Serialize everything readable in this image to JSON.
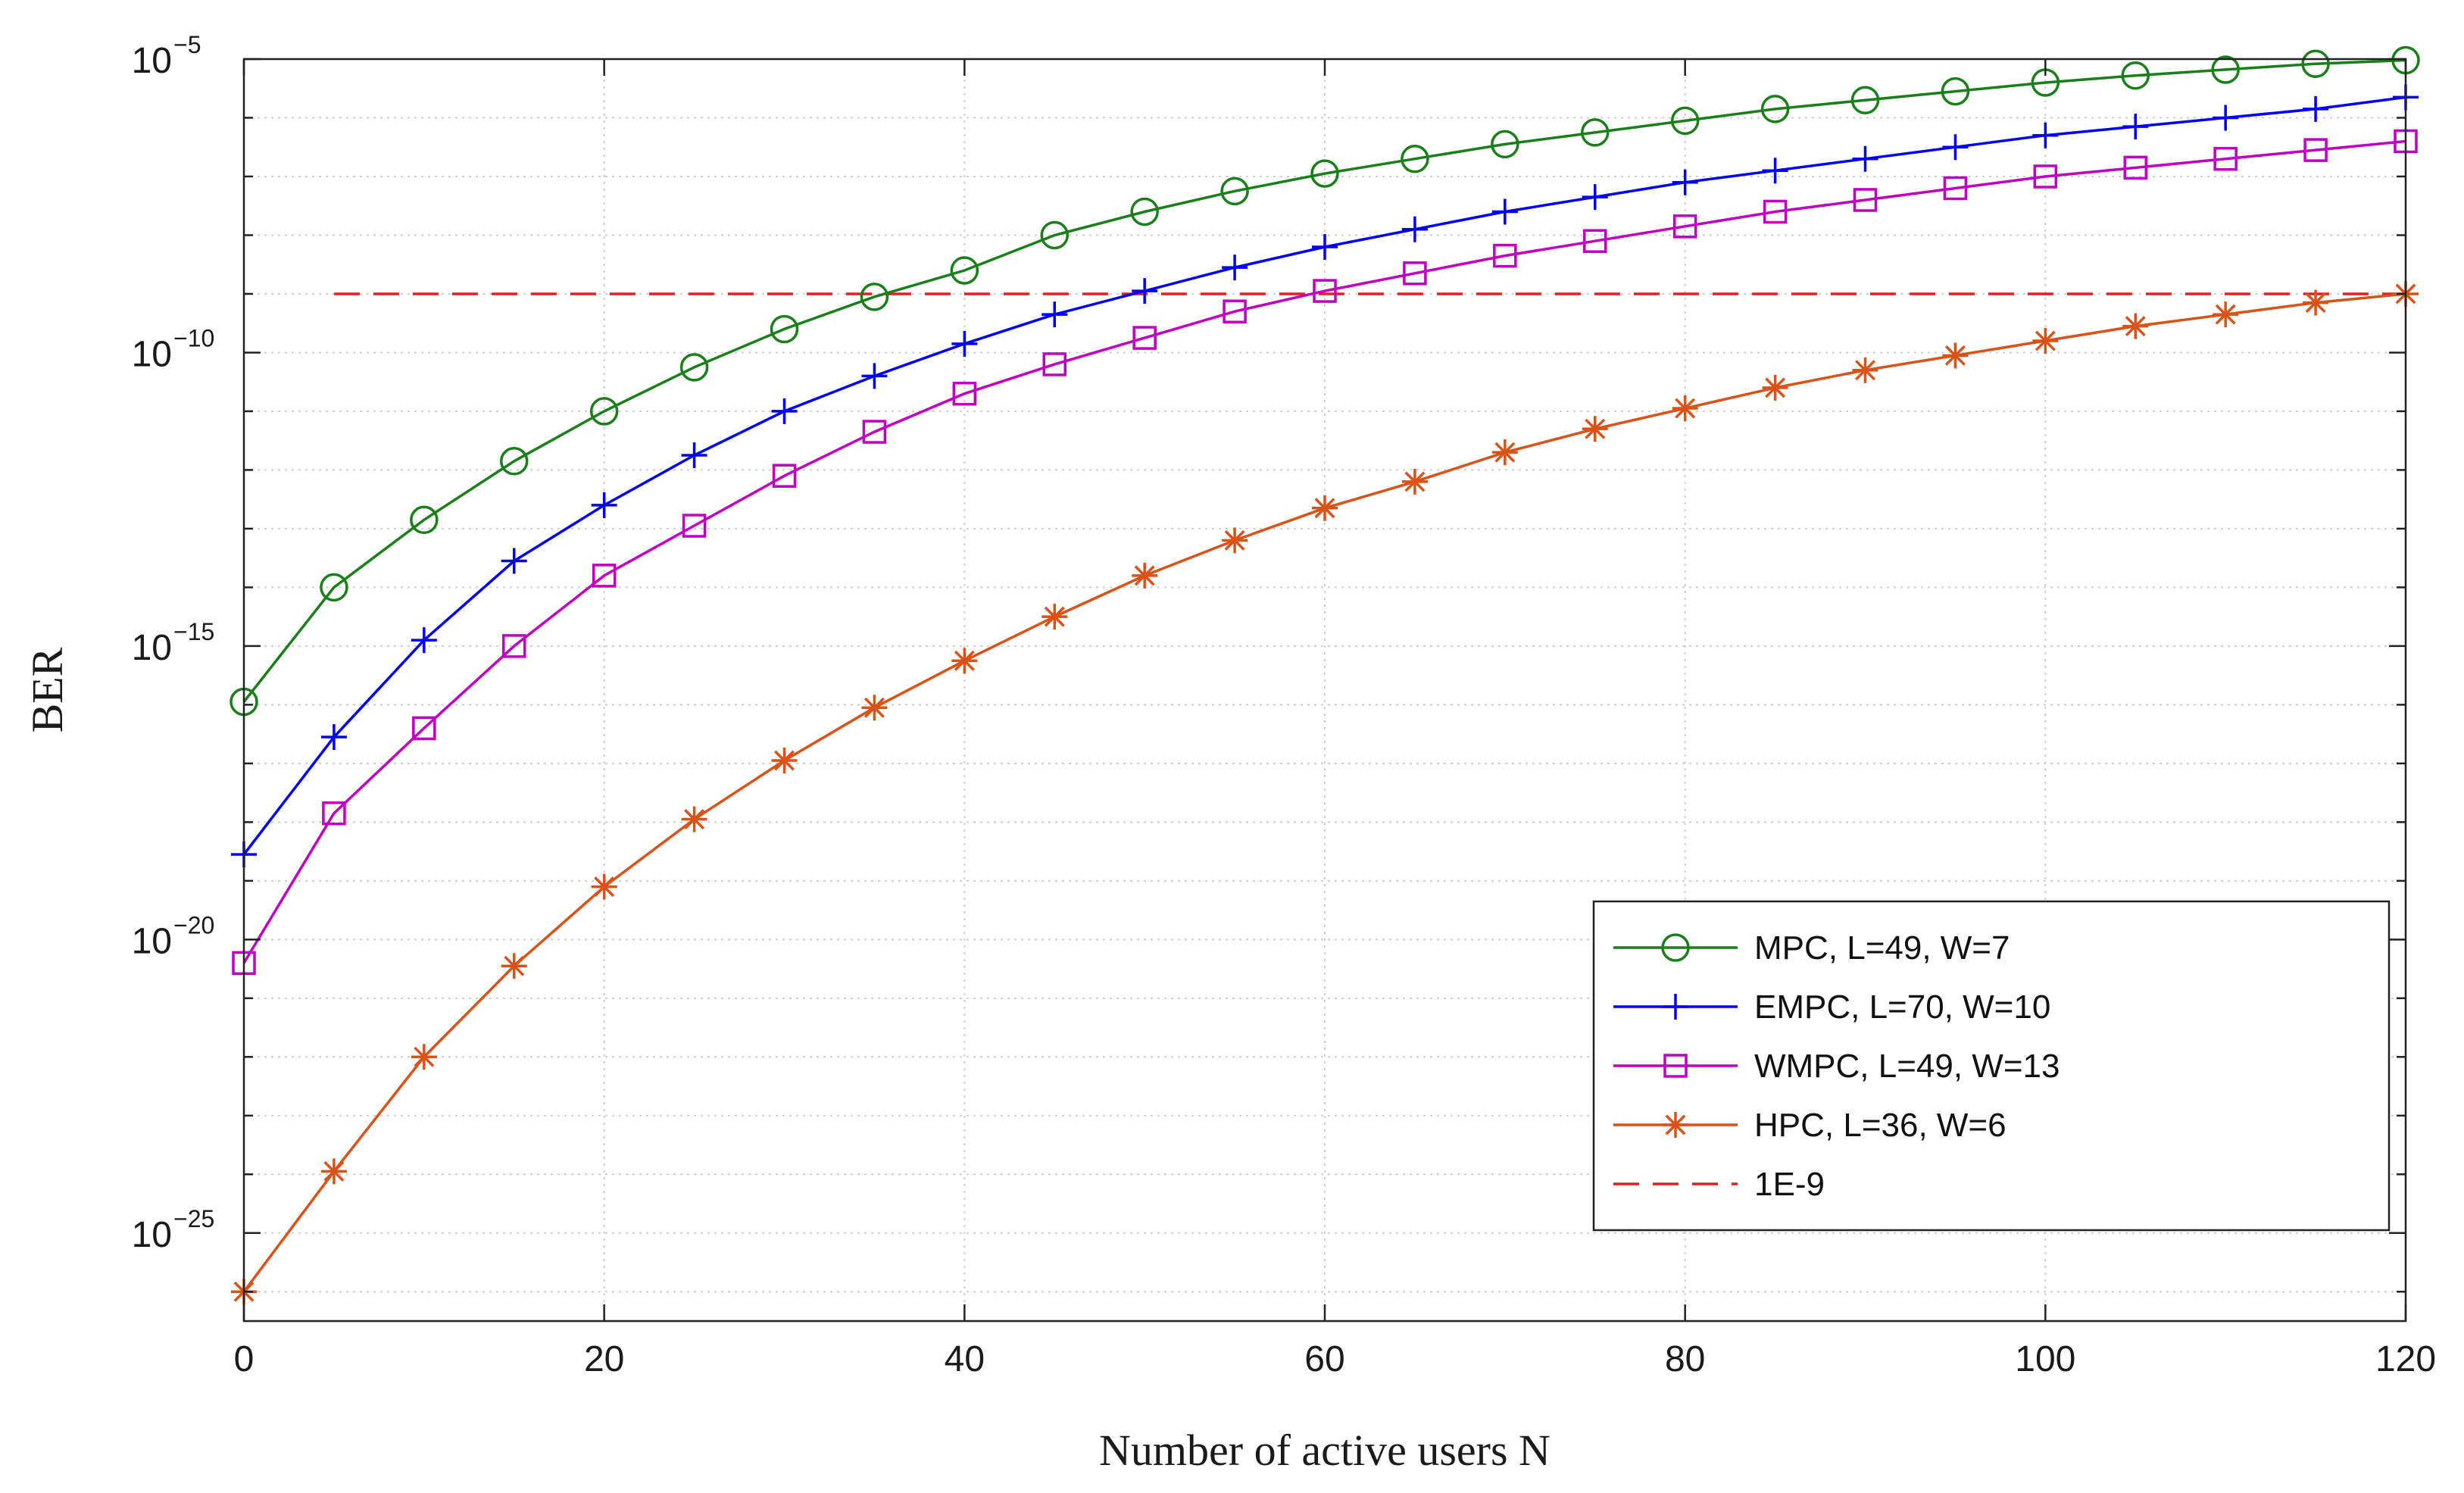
{
  "chart_data": {
    "type": "line",
    "title": "",
    "xlabel": "Number of active users N",
    "ylabel": "BER",
    "y_scale": "log",
    "xlim": [
      0,
      120
    ],
    "ylim_exponent": [
      -26.5,
      -5
    ],
    "x_ticks": [
      0,
      20,
      40,
      60,
      80,
      100,
      120
    ],
    "x_tick_labels": [
      "0",
      "20",
      "40",
      "60",
      "80",
      "100",
      "120"
    ],
    "y_ticks_exponent": [
      -25,
      -20,
      -15,
      -10,
      -5
    ],
    "y_tick_labels": [
      {
        "base": "10",
        "exp": "−25"
      },
      {
        "base": "10",
        "exp": "−20"
      },
      {
        "base": "10",
        "exp": "−15"
      },
      {
        "base": "10",
        "exp": "−10"
      },
      {
        "base": "10",
        "exp": "−5"
      }
    ],
    "grid": true,
    "legend_position": "bottom-right",
    "x": [
      0,
      5,
      10,
      15,
      20,
      25,
      30,
      35,
      40,
      45,
      50,
      55,
      60,
      65,
      70,
      75,
      80,
      85,
      90,
      95,
      100,
      105,
      110,
      115,
      120
    ],
    "series": [
      {
        "name": "MPC, L=49, W=7",
        "color": "#1a7f1a",
        "marker": "circle",
        "line_style": "solid",
        "log10_values": [
          -15.95,
          -14.0,
          -12.85,
          -11.85,
          -11.0,
          -10.25,
          -9.6,
          -9.05,
          -8.6,
          -8.0,
          -7.6,
          -7.25,
          -6.95,
          -6.7,
          -6.45,
          -6.25,
          -6.05,
          -5.85,
          -5.7,
          -5.55,
          -5.4,
          -5.28,
          -5.18,
          -5.08,
          -5.02
        ]
      },
      {
        "name": "EMPC, L=70, W=10",
        "color": "#0000ff",
        "marker": "plus",
        "line_style": "solid",
        "log10_values": [
          -18.55,
          -16.55,
          -14.9,
          -13.55,
          -12.6,
          -11.75,
          -11.0,
          -10.4,
          -9.85,
          -9.35,
          -8.95,
          -8.55,
          -8.2,
          -7.9,
          -7.6,
          -7.35,
          -7.1,
          -6.9,
          -6.7,
          -6.5,
          -6.3,
          -6.15,
          -6.0,
          -5.85,
          -5.65
        ]
      },
      {
        "name": "WMPC, L=49, W=13",
        "color": "#c000c0",
        "marker": "square",
        "line_style": "solid",
        "log10_values": [
          -20.4,
          -17.85,
          -16.4,
          -15.0,
          -13.8,
          -12.95,
          -12.1,
          -11.35,
          -10.7,
          -10.2,
          -9.75,
          -9.3,
          -8.95,
          -8.65,
          -8.35,
          -8.1,
          -7.85,
          -7.6,
          -7.4,
          -7.2,
          -7.0,
          -6.85,
          -6.7,
          -6.55,
          -6.4
        ]
      },
      {
        "name": "HPC, L=36, W=6",
        "color": "#d95319",
        "marker": "asterisk",
        "line_style": "solid",
        "log10_values": [
          -26.0,
          -23.95,
          -22.0,
          -20.45,
          -19.1,
          -17.95,
          -16.95,
          -16.05,
          -15.25,
          -14.5,
          -13.8,
          -13.2,
          -12.65,
          -12.2,
          -11.7,
          -11.3,
          -10.95,
          -10.6,
          -10.3,
          -10.05,
          -9.8,
          -9.55,
          -9.35,
          -9.15,
          -9.0
        ]
      },
      {
        "name": "1E-9",
        "color": "#e02020",
        "marker": "none",
        "line_style": "dashed",
        "x_range": [
          5,
          120
        ],
        "log10_value": -9
      }
    ]
  }
}
